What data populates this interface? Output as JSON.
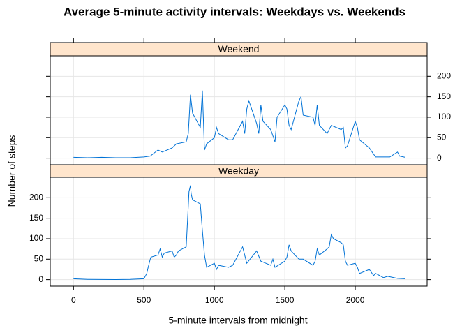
{
  "chart_data": {
    "type": "line",
    "title": "Average  5-minute activity intervals: Weekdays vs. Weekends",
    "xlabel": "5-minute intervals from midnight",
    "ylabel": "Number of steps",
    "xlim": [
      -165,
      2510
    ],
    "ylim": [
      -16,
      250
    ],
    "xticks": [
      0,
      500,
      1000,
      1500,
      2000
    ],
    "yticks": [
      0,
      50,
      100,
      150,
      200
    ],
    "grid": true,
    "series": [
      {
        "name": "Weekend",
        "color": "#0072d6",
        "x": [
          0,
          100,
          200,
          300,
          400,
          500,
          545,
          600,
          630,
          700,
          730,
          800,
          815,
          830,
          845,
          900,
          915,
          930,
          945,
          1000,
          1015,
          1030,
          1100,
          1130,
          1200,
          1215,
          1230,
          1245,
          1300,
          1315,
          1330,
          1345,
          1400,
          1430,
          1445,
          1500,
          1515,
          1530,
          1545,
          1600,
          1615,
          1630,
          1700,
          1715,
          1730,
          1745,
          1800,
          1830,
          1900,
          1915,
          1930,
          1945,
          2000,
          2015,
          2030,
          2100,
          2130,
          2145,
          2200,
          2245,
          2300,
          2315,
          2355
        ],
        "values": [
          2,
          1,
          2,
          1,
          1,
          3,
          5,
          20,
          15,
          25,
          35,
          40,
          60,
          155,
          110,
          75,
          165,
          20,
          35,
          50,
          75,
          60,
          45,
          45,
          90,
          60,
          120,
          140,
          85,
          60,
          130,
          90,
          70,
          40,
          100,
          130,
          120,
          80,
          70,
          140,
          150,
          105,
          100,
          80,
          130,
          80,
          60,
          80,
          70,
          75,
          25,
          30,
          90,
          75,
          45,
          25,
          10,
          3,
          3,
          3,
          15,
          5,
          2
        ]
      },
      {
        "name": "Weekday",
        "color": "#0072d6",
        "x": [
          0,
          100,
          200,
          300,
          400,
          500,
          520,
          530,
          545,
          550,
          600,
          615,
          630,
          645,
          700,
          715,
          730,
          745,
          800,
          815,
          820,
          830,
          835,
          845,
          900,
          915,
          930,
          945,
          1000,
          1015,
          1030,
          1100,
          1130,
          1200,
          1215,
          1230,
          1300,
          1330,
          1400,
          1415,
          1430,
          1500,
          1515,
          1530,
          1545,
          1600,
          1630,
          1700,
          1715,
          1730,
          1745,
          1800,
          1815,
          1830,
          1845,
          1900,
          1915,
          1930,
          1945,
          2000,
          2015,
          2030,
          2100,
          2130,
          2145,
          2200,
          2230,
          2300,
          2355
        ],
        "values": [
          2,
          0.5,
          0.3,
          0.2,
          0.5,
          2,
          15,
          30,
          50,
          55,
          60,
          75,
          55,
          65,
          70,
          55,
          60,
          70,
          80,
          180,
          215,
          230,
          210,
          195,
          185,
          120,
          60,
          30,
          40,
          25,
          35,
          30,
          35,
          80,
          60,
          40,
          70,
          45,
          35,
          50,
          30,
          45,
          55,
          85,
          70,
          50,
          50,
          35,
          45,
          75,
          60,
          75,
          80,
          110,
          100,
          90,
          85,
          45,
          35,
          40,
          30,
          15,
          25,
          10,
          15,
          5,
          8,
          3,
          2
        ]
      }
    ]
  }
}
